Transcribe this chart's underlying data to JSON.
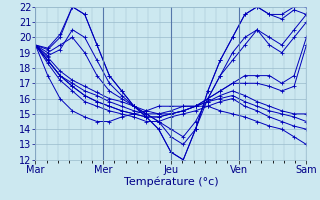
{
  "xlabel": "Température (°c)",
  "bg_color": "#cce8f0",
  "line_color": "#0000bb",
  "grid_color": "#99bbcc",
  "text_color": "#000088",
  "ylim": [
    12,
    22
  ],
  "yticks": [
    12,
    13,
    14,
    15,
    16,
    17,
    18,
    19,
    20,
    21,
    22
  ],
  "days": [
    "Mar",
    "Mer",
    "Jeu",
    "Ven",
    "Sam"
  ],
  "day_positions": [
    0,
    24,
    48,
    72,
    96
  ],
  "xlim": [
    0,
    96
  ],
  "series": [
    [
      19.5,
      19.2,
      20.0,
      22.0,
      21.5,
      19.5,
      17.5,
      16.5,
      15.5,
      14.8,
      14.0,
      12.5,
      12.0,
      14.0,
      16.5,
      18.5,
      20.0,
      21.5,
      22.0,
      21.5,
      21.5,
      22.0,
      22.0
    ],
    [
      19.5,
      19.3,
      20.2,
      22.0,
      21.5,
      19.5,
      17.5,
      16.5,
      15.5,
      14.8,
      14.0,
      12.5,
      12.0,
      14.0,
      16.5,
      18.5,
      20.0,
      21.5,
      22.0,
      21.5,
      21.2,
      21.8,
      21.5
    ],
    [
      19.5,
      19.0,
      19.5,
      20.0,
      19.0,
      17.5,
      16.5,
      16.0,
      15.5,
      15.0,
      14.5,
      14.0,
      13.5,
      14.5,
      16.0,
      17.5,
      18.5,
      19.5,
      20.5,
      19.5,
      19.0,
      20.0,
      21.0
    ],
    [
      19.5,
      18.8,
      19.2,
      20.5,
      20.0,
      18.5,
      17.0,
      16.2,
      15.5,
      15.0,
      14.5,
      13.5,
      13.0,
      14.0,
      16.0,
      17.5,
      19.0,
      20.0,
      20.5,
      20.0,
      19.5,
      20.5,
      21.5
    ],
    [
      19.5,
      18.5,
      17.5,
      17.0,
      16.5,
      16.2,
      15.8,
      15.5,
      15.2,
      15.0,
      15.0,
      15.2,
      15.5,
      15.5,
      16.0,
      16.5,
      17.0,
      17.5,
      17.5,
      17.5,
      17.0,
      17.5,
      20.0
    ],
    [
      19.5,
      18.7,
      17.8,
      17.2,
      16.8,
      16.4,
      16.0,
      15.8,
      15.5,
      15.2,
      15.0,
      15.0,
      15.2,
      15.5,
      16.0,
      16.5,
      17.0,
      17.0,
      17.0,
      16.8,
      16.5,
      16.8,
      19.5
    ],
    [
      19.5,
      18.5,
      17.5,
      16.8,
      16.2,
      15.8,
      15.5,
      15.2,
      15.0,
      14.8,
      14.8,
      15.0,
      15.2,
      15.5,
      15.8,
      16.2,
      16.5,
      16.2,
      15.8,
      15.5,
      15.2,
      15.0,
      15.0
    ],
    [
      19.5,
      18.5,
      17.5,
      16.8,
      16.2,
      15.8,
      15.5,
      15.2,
      15.0,
      14.8,
      14.8,
      15.0,
      15.2,
      15.5,
      15.8,
      16.0,
      16.2,
      15.8,
      15.5,
      15.2,
      15.0,
      14.8,
      14.5
    ],
    [
      19.5,
      18.3,
      17.2,
      16.5,
      15.8,
      15.5,
      15.2,
      15.0,
      14.8,
      14.5,
      14.5,
      14.8,
      15.0,
      15.2,
      15.5,
      15.8,
      16.0,
      15.5,
      15.2,
      14.8,
      14.5,
      14.2,
      14.0
    ],
    [
      19.5,
      17.5,
      16.0,
      15.2,
      14.8,
      14.5,
      14.5,
      14.8,
      15.0,
      15.2,
      15.5,
      15.5,
      15.5,
      15.5,
      15.5,
      15.2,
      15.0,
      14.8,
      14.5,
      14.2,
      14.0,
      13.5,
      13.0
    ]
  ],
  "marker": "+",
  "markersize": 3,
  "linewidth": 0.7,
  "fontsize": 8,
  "tick_fontsize": 7
}
